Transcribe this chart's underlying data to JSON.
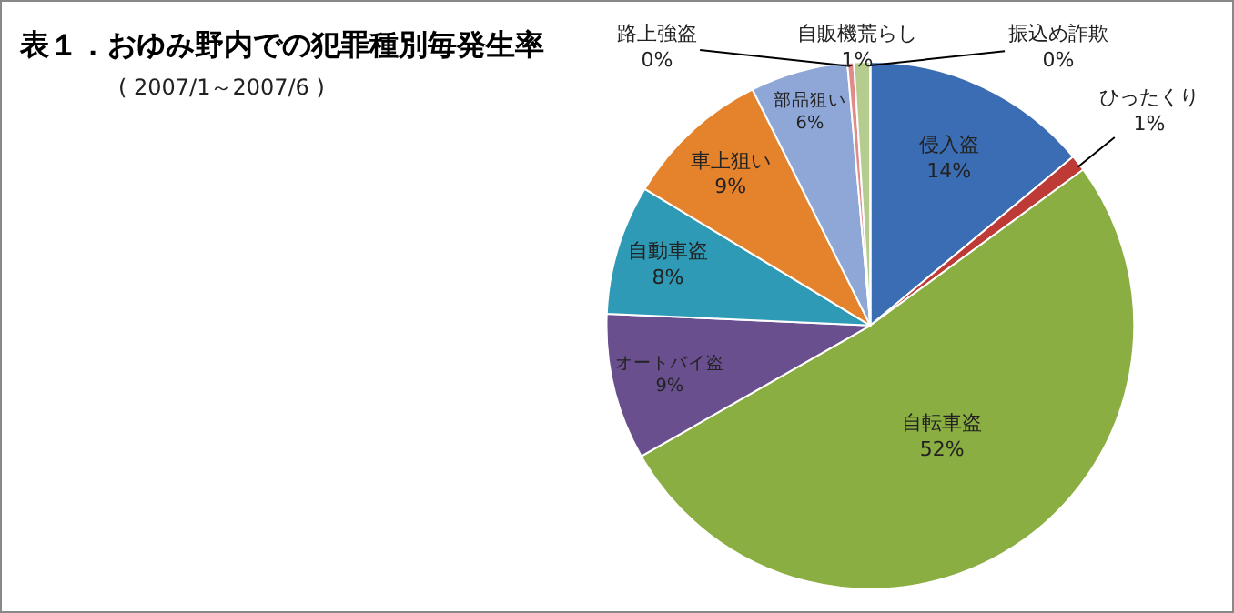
{
  "chart_data": {
    "type": "pie",
    "title": "表１．おゆみ野内での犯罪種別毎発生率",
    "subtitle": "( 2007/1～2007/6 )",
    "categories": [
      "侵入盗",
      "ひったくり",
      "自転車盗",
      "オートバイ盗",
      "自動車盗",
      "車上狙い",
      "部品狙い",
      "路上強盗",
      "自販機荒らし",
      "振込め詐欺"
    ],
    "values": [
      14,
      1,
      52,
      9,
      8,
      9,
      6,
      0.4,
      1,
      0
    ],
    "value_labels": [
      "14%",
      "1%",
      "52%",
      "9%",
      "8%",
      "9%",
      "6%",
      "0%",
      "1%",
      "0%"
    ],
    "colors": [
      "#3b6db5",
      "#be3a36",
      "#8bae42",
      "#6a4f8f",
      "#2e9ab5",
      "#e5832d",
      "#8ea7d6",
      "#e08a8a",
      "#b5cc8e",
      "#4bacc6"
    ],
    "legend": false
  }
}
